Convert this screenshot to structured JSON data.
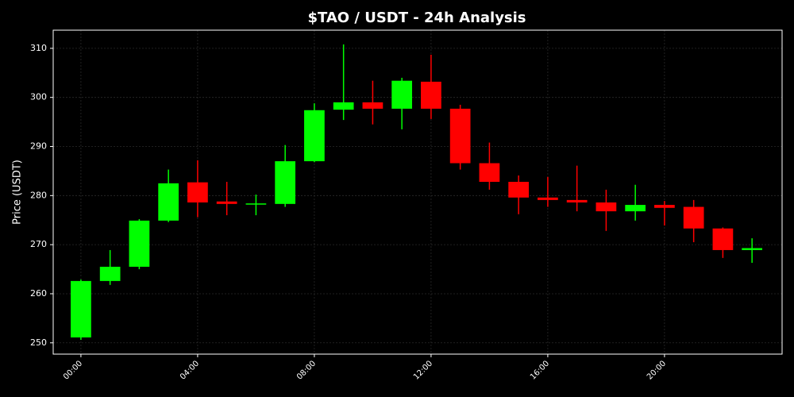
{
  "chart_data": {
    "type": "candlestick",
    "title": "$TAO / USDT - 24h Analysis",
    "y_label": "Price (USDT)",
    "categories": [
      "00:00",
      null,
      null,
      null,
      "04:00",
      null,
      null,
      null,
      "08:00",
      null,
      null,
      null,
      "12:00",
      null,
      null,
      null,
      "16:00",
      null,
      null,
      null,
      "20:00",
      null,
      null,
      null
    ],
    "open": [
      251.1,
      262.6,
      265.5,
      274.9,
      282.7,
      278.8,
      278.2,
      278.3,
      287.0,
      297.5,
      299.0,
      297.7,
      303.2,
      297.7,
      286.6,
      282.8,
      279.6,
      279.1,
      278.6,
      276.8,
      278.1,
      277.7,
      273.3,
      268.9
    ],
    "high": [
      262.9,
      268.9,
      275.2,
      285.3,
      287.2,
      282.8,
      280.2,
      290.3,
      298.8,
      310.8,
      303.4,
      304.0,
      308.7,
      298.5,
      290.8,
      284.1,
      283.8,
      286.1,
      281.2,
      282.2,
      278.9,
      279.1,
      273.5,
      271.3
    ],
    "low": [
      250.6,
      261.8,
      265.0,
      274.6,
      275.6,
      276.0,
      276.0,
      277.7,
      286.8,
      295.4,
      294.5,
      293.5,
      295.6,
      285.3,
      281.2,
      276.2,
      277.7,
      276.8,
      272.8,
      274.9,
      273.9,
      270.5,
      267.3,
      266.3
    ],
    "close": [
      262.6,
      265.5,
      274.9,
      282.5,
      278.6,
      278.3,
      278.4,
      287.0,
      297.4,
      299.0,
      297.7,
      303.4,
      297.7,
      286.6,
      282.8,
      279.6,
      279.1,
      278.6,
      276.8,
      278.1,
      277.5,
      273.3,
      268.9,
      269.3
    ],
    "up_color": "#00ff00",
    "down_color": "#ff0000",
    "xlim": [
      -0.95,
      24.03
    ],
    "ylim": [
      247.7,
      313.7
    ],
    "yticks": [
      250,
      260,
      270,
      280,
      290,
      300,
      310
    ],
    "grid": true
  }
}
